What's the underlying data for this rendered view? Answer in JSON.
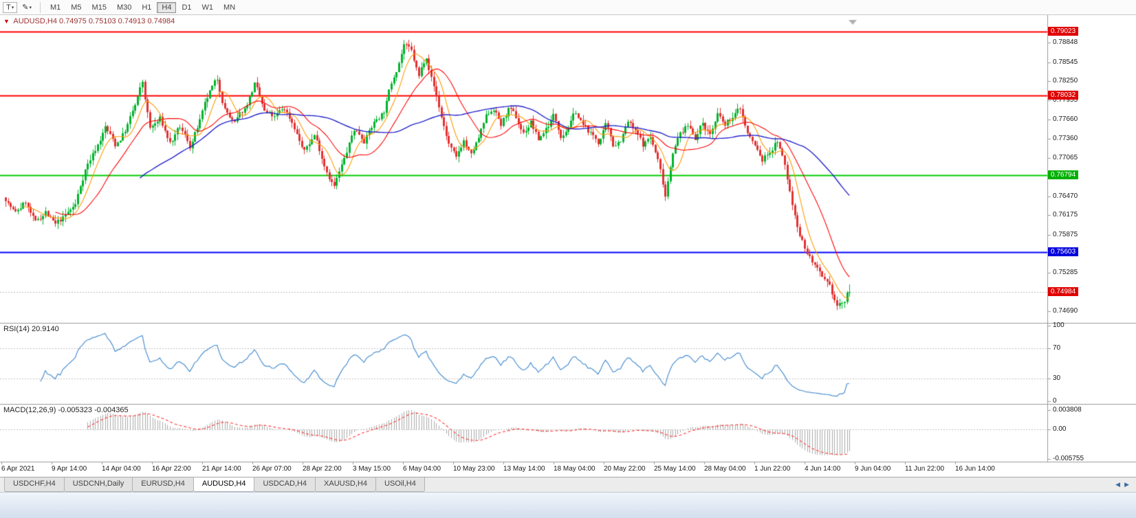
{
  "icons": {
    "dropdown": "▾",
    "pencil": "✎",
    "marker": "▼",
    "arrow_left": "◀",
    "arrow_right": "▶"
  },
  "toolbar": {
    "chart_type_label": "T",
    "timeframes": [
      "M1",
      "M5",
      "M15",
      "M30",
      "H1",
      "H4",
      "D1",
      "W1",
      "MN"
    ],
    "active_timeframe": "H4"
  },
  "tabs": {
    "items": [
      "USDCHF,H4",
      "USDCNH,Daily",
      "EURUSD,H4",
      "AUDUSD,H4",
      "USDCAD,H4",
      "XAUUSD,H4",
      "USOil,H4"
    ],
    "active": "AUDUSD,H4"
  },
  "chart_data": {
    "type": "candlestick",
    "title": "AUDUSD,H4",
    "ohlc_label": "0.74975 0.75103 0.74913 0.74984",
    "ohlc": {
      "open": 0.74975,
      "high": 0.75103,
      "low": 0.74913,
      "close": 0.74984
    },
    "price_range": {
      "top": 0.7921,
      "bottom": 0.7454
    },
    "y_ticks": [
      "0.78848",
      "0.78545",
      "0.78250",
      "0.77955",
      "0.77660",
      "0.77360",
      "0.77065",
      "0.76770",
      "0.76470",
      "0.76175",
      "0.75875",
      "0.75285",
      "0.74690"
    ],
    "x_ticks": [
      "6 Apr 2021",
      "9 Apr 14:00",
      "14 Apr 04:00",
      "16 Apr 22:00",
      "21 Apr 14:00",
      "26 Apr 07:00",
      "28 Apr 22:00",
      "3 May 15:00",
      "6 May 04:00",
      "10 May 23:00",
      "13 May 14:00",
      "18 May 04:00",
      "20 May 22:00",
      "25 May 14:00",
      "28 May 04:00",
      "1 Jun 22:00",
      "4 Jun 14:00",
      "9 Jun 04:00",
      "11 Jun 22:00",
      "16 Jun 14:00"
    ],
    "price_tags": [
      {
        "text": "0.79023",
        "color": "#e00000"
      },
      {
        "text": "0.78032",
        "color": "#e00000"
      },
      {
        "text": "0.76794",
        "color": "#00b000"
      },
      {
        "text": "0.75603",
        "color": "#0000dd"
      },
      {
        "text": "0.74984",
        "color": "#e00000"
      }
    ],
    "horizontal_lines": [
      {
        "price": 0.79023,
        "color": "#ff0000",
        "width": 2,
        "style": "solid"
      },
      {
        "price": 0.78032,
        "color": "#ff0000",
        "width": 2,
        "style": "solid"
      },
      {
        "price": 0.76794,
        "color": "#00cc00",
        "width": 2,
        "style": "solid"
      },
      {
        "price": 0.75603,
        "color": "#0000ff",
        "width": 2,
        "style": "solid"
      },
      {
        "price": 0.74984,
        "color": "#bbbbbb",
        "width": 1,
        "style": "current"
      }
    ],
    "candles": 340,
    "seed": 7,
    "anchors": [
      [
        0,
        0.7645
      ],
      [
        4,
        0.762
      ],
      [
        8,
        0.7638
      ],
      [
        12,
        0.76
      ],
      [
        16,
        0.7622
      ],
      [
        20,
        0.7598
      ],
      [
        24,
        0.7612
      ],
      [
        28,
        0.763
      ],
      [
        32,
        0.769
      ],
      [
        36,
        0.772
      ],
      [
        40,
        0.7755
      ],
      [
        44,
        0.7725
      ],
      [
        48,
        0.775
      ],
      [
        52,
        0.7785
      ],
      [
        55,
        0.7818
      ],
      [
        58,
        0.7748
      ],
      [
        62,
        0.7762
      ],
      [
        66,
        0.7728
      ],
      [
        70,
        0.7748
      ],
      [
        74,
        0.7722
      ],
      [
        78,
        0.776
      ],
      [
        82,
        0.78
      ],
      [
        85,
        0.7818
      ],
      [
        88,
        0.7782
      ],
      [
        92,
        0.7756
      ],
      [
        96,
        0.7778
      ],
      [
        100,
        0.782
      ],
      [
        104,
        0.7772
      ],
      [
        108,
        0.7762
      ],
      [
        112,
        0.7778
      ],
      [
        116,
        0.7755
      ],
      [
        120,
        0.7715
      ],
      [
        124,
        0.7742
      ],
      [
        128,
        0.77
      ],
      [
        132,
        0.7668
      ],
      [
        136,
        0.7702
      ],
      [
        140,
        0.7748
      ],
      [
        144,
        0.7738
      ],
      [
        148,
        0.7762
      ],
      [
        152,
        0.7782
      ],
      [
        156,
        0.7835
      ],
      [
        160,
        0.7888
      ],
      [
        163,
        0.7868
      ],
      [
        166,
        0.7828
      ],
      [
        169,
        0.7866
      ],
      [
        172,
        0.782
      ],
      [
        175,
        0.7772
      ],
      [
        178,
        0.773
      ],
      [
        181,
        0.77
      ],
      [
        184,
        0.7732
      ],
      [
        187,
        0.7706
      ],
      [
        190,
        0.7732
      ],
      [
        193,
        0.7762
      ],
      [
        196,
        0.7782
      ],
      [
        199,
        0.7756
      ],
      [
        202,
        0.778
      ],
      [
        205,
        0.7762
      ],
      [
        208,
        0.7742
      ],
      [
        211,
        0.7762
      ],
      [
        214,
        0.7732
      ],
      [
        217,
        0.7752
      ],
      [
        220,
        0.7772
      ],
      [
        223,
        0.7746
      ],
      [
        226,
        0.7762
      ],
      [
        229,
        0.778
      ],
      [
        232,
        0.7756
      ],
      [
        235,
        0.7742
      ],
      [
        238,
        0.773
      ],
      [
        241,
        0.7752
      ],
      [
        244,
        0.7722
      ],
      [
        247,
        0.7736
      ],
      [
        250,
        0.7762
      ],
      [
        253,
        0.7742
      ],
      [
        256,
        0.7722
      ],
      [
        259,
        0.7736
      ],
      [
        262,
        0.77
      ],
      [
        265,
        0.7648
      ],
      [
        268,
        0.7722
      ],
      [
        271,
        0.7746
      ],
      [
        274,
        0.7756
      ],
      [
        277,
        0.7742
      ],
      [
        280,
        0.7762
      ],
      [
        283,
        0.7746
      ],
      [
        286,
        0.7772
      ],
      [
        289,
        0.7752
      ],
      [
        292,
        0.7766
      ],
      [
        295,
        0.778
      ],
      [
        298,
        0.7742
      ],
      [
        301,
        0.7722
      ],
      [
        304,
        0.77
      ],
      [
        307,
        0.7716
      ],
      [
        310,
        0.7734
      ],
      [
        313,
        0.7692
      ],
      [
        316,
        0.7632
      ],
      [
        319,
        0.7592
      ],
      [
        322,
        0.7562
      ],
      [
        325,
        0.7542
      ],
      [
        328,
        0.7512
      ],
      [
        331,
        0.7492
      ],
      [
        334,
        0.747
      ],
      [
        337,
        0.7478
      ],
      [
        339,
        0.7498
      ]
    ],
    "colors": {
      "up": "#00b32c",
      "down": "#e23030",
      "ma_fast": "#ff9900",
      "ma_mid": "#ff0000",
      "ma_slow": "#2222cc",
      "rsi": "#4a8fd0",
      "macd_hist": "#a9a9a9",
      "macd_signal": "#ff3333",
      "level_dotted": "#c0c0c0"
    },
    "ma_periods": {
      "fast": 8,
      "mid": 21,
      "slow": 55
    },
    "indicators": [
      {
        "name": "RSI",
        "label": "RSI(14) 20.9140",
        "period": 14,
        "current": 20.914,
        "levels": [
          70,
          30
        ],
        "axis_labels": [
          "100",
          "70",
          "30",
          "0"
        ]
      },
      {
        "name": "MACD",
        "label": "MACD(12,26,9) -0.005323 -0.004365",
        "fast": 12,
        "slow": 26,
        "signal": 9,
        "current": -0.005323,
        "signal_current": -0.004365,
        "axis_labels": [
          "0.003808",
          "0.00",
          "-0.005755"
        ]
      }
    ]
  }
}
